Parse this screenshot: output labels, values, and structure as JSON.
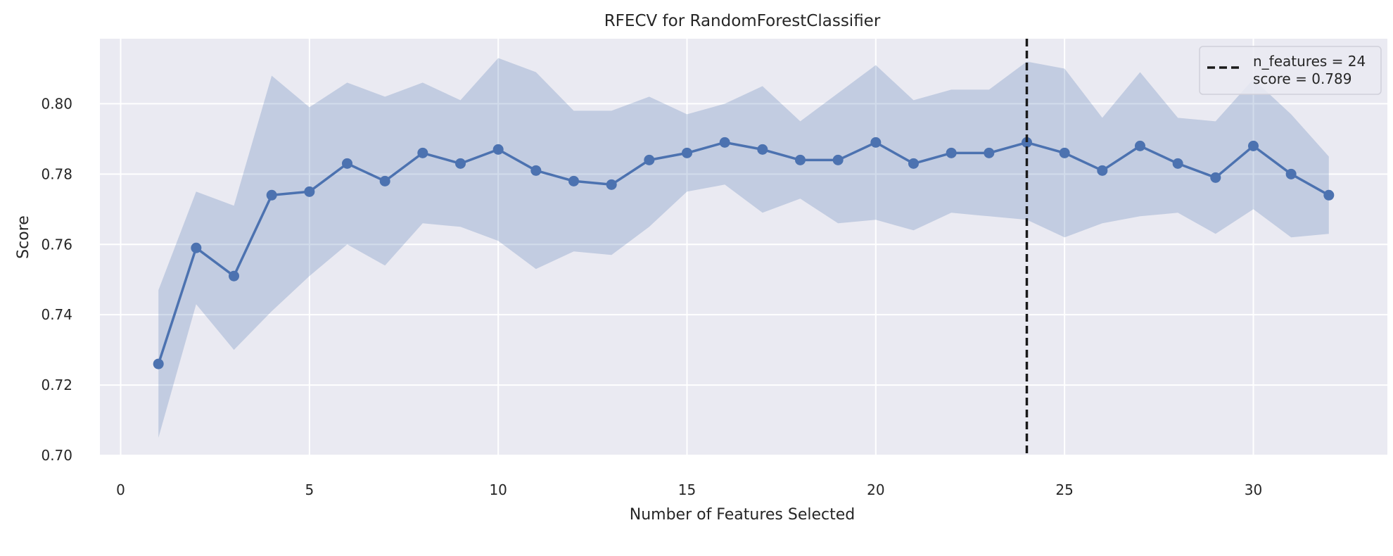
{
  "chart_data": {
    "type": "line",
    "title": "RFECV for RandomForestClassifier",
    "xlabel": "Number of Features Selected",
    "ylabel": "Score",
    "xlim": [
      -0.55,
      33.55
    ],
    "ylim": [
      0.7,
      0.8185
    ],
    "xticks": [
      0,
      5,
      10,
      15,
      20,
      25,
      30
    ],
    "yticks": [
      0.7,
      0.72,
      0.74,
      0.76,
      0.78,
      0.8
    ],
    "grid": true,
    "colors": {
      "background": "#eaeaf2",
      "grid": "#ffffff",
      "line": "#4c72b0",
      "band": "#4c72b0",
      "vline": "#1a1a1a"
    },
    "series": [
      {
        "x": [
          1,
          2,
          3,
          4,
          5,
          6,
          7,
          8,
          9,
          10,
          11,
          12,
          13,
          14,
          15,
          16,
          17,
          18,
          19,
          20,
          21,
          22,
          23,
          24,
          25,
          26,
          27,
          28,
          29,
          30,
          31,
          32
        ],
        "values": [
          0.726,
          0.759,
          0.751,
          0.774,
          0.775,
          0.783,
          0.778,
          0.786,
          0.783,
          0.787,
          0.781,
          0.778,
          0.777,
          0.784,
          0.786,
          0.789,
          0.787,
          0.784,
          0.784,
          0.789,
          0.783,
          0.786,
          0.786,
          0.789,
          0.786,
          0.781,
          0.788,
          0.783,
          0.779,
          0.788,
          0.78,
          0.774
        ],
        "upper": [
          0.747,
          0.775,
          0.771,
          0.808,
          0.799,
          0.806,
          0.802,
          0.806,
          0.801,
          0.813,
          0.809,
          0.798,
          0.798,
          0.802,
          0.797,
          0.8,
          0.805,
          0.795,
          0.803,
          0.811,
          0.801,
          0.804,
          0.804,
          0.812,
          0.81,
          0.796,
          0.809,
          0.796,
          0.795,
          0.807,
          0.797,
          0.785
        ],
        "lower": [
          0.705,
          0.743,
          0.73,
          0.741,
          0.751,
          0.76,
          0.754,
          0.766,
          0.765,
          0.761,
          0.753,
          0.758,
          0.757,
          0.765,
          0.775,
          0.777,
          0.769,
          0.773,
          0.766,
          0.767,
          0.764,
          0.769,
          0.768,
          0.767,
          0.762,
          0.766,
          0.768,
          0.769,
          0.763,
          0.77,
          0.762,
          0.763
        ]
      }
    ],
    "vline": {
      "x": 24
    },
    "legend": {
      "position": "top-right",
      "line1": "n_features = 24",
      "line2": "score = 0.789"
    }
  }
}
